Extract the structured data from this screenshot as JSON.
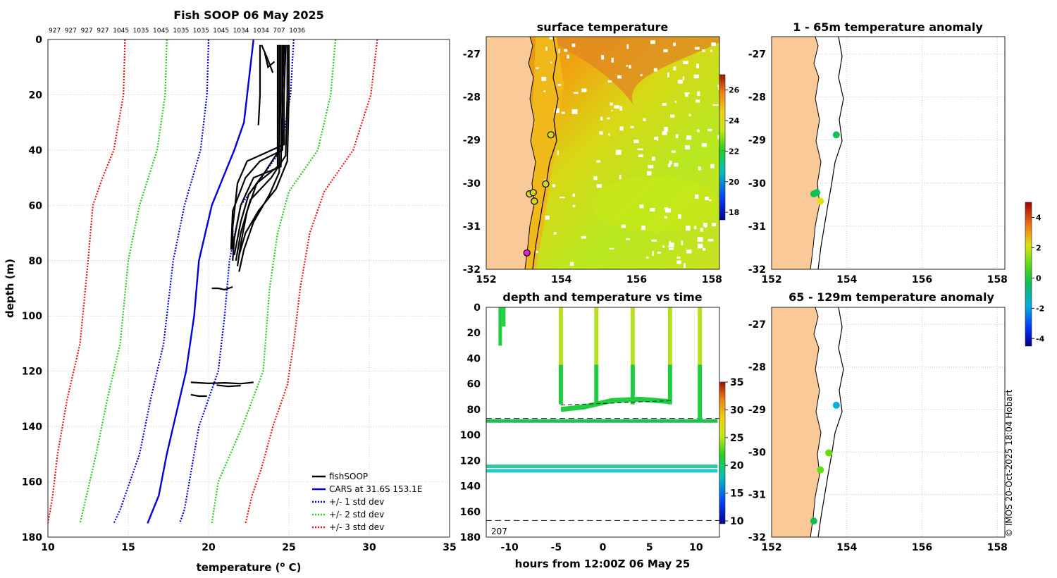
{
  "colors": {
    "land": "#f9c998",
    "cars": "#0000dd",
    "std1": "#0000dd",
    "std2": "#22cc22",
    "std3": "#ee1111",
    "profile": "#000000",
    "sst_warm": "#f0b010",
    "sst_cool": "#c8e820"
  },
  "profile_plot": {
    "title": "Fish SOOP 06 May 2025",
    "counts": [
      "927",
      "927",
      "927",
      "927",
      "1045",
      "1035",
      "1045",
      "1035",
      "1035",
      "1045",
      "1034",
      "1034",
      "707",
      "1036"
    ],
    "xlabel": "temperature (o C)",
    "xlabel_main": "temperature (",
    "xlabel_sup": "o",
    "xlabel_end": " C)",
    "ylabel": "depth (m)",
    "xticks": [
      "10",
      "15",
      "20",
      "25",
      "30",
      "35"
    ],
    "yticks": [
      "0",
      "20",
      "40",
      "60",
      "80",
      "100",
      "120",
      "140",
      "160",
      "180"
    ],
    "legend": [
      "fishSOOP",
      "CARS at 31.6S 153.1E",
      "+/- 1 std dev",
      "+/- 2 std dev",
      "+/- 3 std dev"
    ]
  },
  "chart_data": [
    {
      "type": "line",
      "title": "Fish SOOP 06 May 2025",
      "xlabel": "temperature (o C)",
      "ylabel": "depth (m)",
      "xlim": [
        10,
        35
      ],
      "ylim": [
        180,
        0
      ],
      "series": [
        {
          "name": "CARS at 31.6S 153.1E",
          "points": [
            [
              22.8,
              0
            ],
            [
              22.5,
              15
            ],
            [
              22.2,
              30
            ],
            [
              21.6,
              40
            ],
            [
              20.9,
              50
            ],
            [
              20.2,
              60
            ],
            [
              19.8,
              70
            ],
            [
              19.4,
              80
            ],
            [
              19.1,
              100
            ],
            [
              18.6,
              120
            ],
            [
              17.8,
              140
            ],
            [
              17.4,
              150
            ],
            [
              16.9,
              165
            ],
            [
              16.2,
              175
            ]
          ]
        },
        {
          "name": "+/- 1 std dev (low)",
          "points": [
            [
              20.0,
              0
            ],
            [
              19.9,
              20
            ],
            [
              19.5,
              40
            ],
            [
              18.5,
              60
            ],
            [
              17.8,
              80
            ],
            [
              17.2,
              110
            ],
            [
              16.4,
              130
            ],
            [
              15.7,
              150
            ],
            [
              14.5,
              170
            ],
            [
              14.1,
              175
            ]
          ]
        },
        {
          "name": "+/- 1 std dev (high)",
          "points": [
            [
              25.3,
              0
            ],
            [
              25.1,
              20
            ],
            [
              24.5,
              40
            ],
            [
              23.3,
              50
            ],
            [
              22.0,
              60
            ],
            [
              21.3,
              80
            ],
            [
              21.0,
              100
            ],
            [
              20.6,
              120
            ],
            [
              19.4,
              140
            ],
            [
              18.5,
              170
            ],
            [
              18.2,
              175
            ]
          ]
        },
        {
          "name": "+/- 2 std dev (low)",
          "points": [
            [
              17.4,
              0
            ],
            [
              17.3,
              20
            ],
            [
              16.8,
              40
            ],
            [
              15.7,
              60
            ],
            [
              15.0,
              80
            ],
            [
              14.5,
              110
            ],
            [
              13.7,
              130
            ],
            [
              13.0,
              150
            ],
            [
              12.2,
              170
            ],
            [
              12.0,
              175
            ]
          ]
        },
        {
          "name": "+/- 2 std dev (high)",
          "points": [
            [
              27.9,
              0
            ],
            [
              27.6,
              20
            ],
            [
              26.8,
              40
            ],
            [
              25.0,
              55
            ],
            [
              24.3,
              70
            ],
            [
              23.8,
              90
            ],
            [
              23.4,
              120
            ],
            [
              22.1,
              140
            ],
            [
              20.6,
              160
            ],
            [
              20.2,
              175
            ]
          ]
        },
        {
          "name": "+/- 3 std dev (low)",
          "points": [
            [
              14.8,
              0
            ],
            [
              14.7,
              20
            ],
            [
              14.1,
              40
            ],
            [
              13.4,
              50
            ],
            [
              12.8,
              60
            ],
            [
              12.5,
              80
            ],
            [
              12.0,
              110
            ],
            [
              11.2,
              130
            ],
            [
              10.6,
              150
            ],
            [
              10.3,
              165
            ],
            [
              10.0,
              175
            ]
          ]
        },
        {
          "name": "+/- 3 std dev (high)",
          "points": [
            [
              30.5,
              0
            ],
            [
              30.1,
              20
            ],
            [
              29.0,
              40
            ],
            [
              27.2,
              55
            ],
            [
              26.3,
              70
            ],
            [
              25.7,
              90
            ],
            [
              25.3,
              110
            ],
            [
              24.9,
              125
            ],
            [
              24.0,
              140
            ],
            [
              23.3,
              155
            ],
            [
              22.7,
              165
            ],
            [
              22.3,
              175
            ]
          ]
        },
        {
          "name": "fishSOOP",
          "profiles": [
            [
              [
                23.2,
                2
              ],
              [
                23.2,
                20
              ],
              [
                23.1,
                31
              ]
            ],
            [
              [
                23.3,
                2
              ],
              [
                23.6,
                6
              ],
              [
                24.0,
                12
              ]
            ],
            [
              [
                23.5,
                5
              ],
              [
                23.7,
                10
              ],
              [
                24.1,
                8
              ]
            ],
            [
              [
                24.7,
                2
              ],
              [
                24.6,
                20
              ],
              [
                24.6,
                40
              ],
              [
                23.2,
                44
              ],
              [
                22.3,
                50
              ],
              [
                21.5,
                62
              ],
              [
                21.4,
                76
              ]
            ],
            [
              [
                24.5,
                2
              ],
              [
                24.5,
                20
              ],
              [
                24.4,
                40
              ],
              [
                23.5,
                48
              ],
              [
                22.5,
                56
              ],
              [
                22.0,
                66
              ],
              [
                21.6,
                78
              ]
            ],
            [
              [
                24.8,
                2
              ],
              [
                24.7,
                20
              ],
              [
                24.7,
                38
              ],
              [
                22.4,
                44
              ],
              [
                21.8,
                52
              ],
              [
                21.5,
                68
              ],
              [
                21.5,
                76
              ]
            ],
            [
              [
                24.9,
                2
              ],
              [
                24.9,
                20
              ],
              [
                24.8,
                42
              ],
              [
                23.9,
                50
              ],
              [
                22.6,
                58
              ],
              [
                22.0,
                70
              ],
              [
                21.7,
                80
              ]
            ],
            [
              [
                25.0,
                2
              ],
              [
                25.0,
                20
              ],
              [
                24.9,
                44
              ],
              [
                24.2,
                54
              ],
              [
                23.1,
                62
              ],
              [
                22.3,
                70
              ],
              [
                21.9,
                78
              ]
            ],
            [
              [
                24.6,
                2
              ],
              [
                24.6,
                20
              ],
              [
                24.5,
                46
              ],
              [
                22.8,
                50
              ],
              [
                22.0,
                60
              ],
              [
                21.6,
                72
              ],
              [
                21.5,
                80
              ]
            ],
            [
              [
                24.3,
                2
              ],
              [
                24.3,
                20
              ],
              [
                24.3,
                46
              ],
              [
                23.0,
                52
              ],
              [
                22.4,
                62
              ],
              [
                22.0,
                74
              ],
              [
                21.8,
                82
              ]
            ],
            [
              [
                24.4,
                2
              ],
              [
                24.4,
                20
              ],
              [
                24.4,
                48
              ],
              [
                23.8,
                56
              ],
              [
                22.8,
                66
              ],
              [
                22.2,
                76
              ],
              [
                21.9,
                84
              ]
            ],
            [
              [
                20.2,
                90
              ],
              [
                20.6,
                90
              ],
              [
                21.0,
                90.5
              ],
              [
                21.5,
                89.5
              ]
            ],
            [
              [
                18.9,
                124
              ],
              [
                20.0,
                124.4
              ],
              [
                21.0,
                124.2
              ],
              [
                22.0,
                124.5
              ],
              [
                22.8,
                124.0
              ]
            ],
            [
              [
                20.5,
                125
              ],
              [
                21.2,
                125.5
              ],
              [
                22.0,
                125.2
              ]
            ],
            [
              [
                18.9,
                128.5
              ],
              [
                19.4,
                129
              ],
              [
                19.9,
                129
              ]
            ]
          ]
        }
      ]
    },
    {
      "type": "heatmap",
      "title": "surface temperature",
      "xlim": [
        152,
        158.2
      ],
      "ylim": [
        -32,
        -26.6
      ],
      "xticks": [
        "152",
        "154",
        "156",
        "158"
      ],
      "yticks": [
        "-27",
        "-28",
        "-29",
        "-30",
        "-31",
        "-32"
      ],
      "colorbar": {
        "range": [
          17.5,
          27
        ],
        "ticks": [
          "26",
          "24",
          "22",
          "20",
          "18"
        ]
      },
      "stations": [
        {
          "lon": 153.72,
          "lat": -28.88
        },
        {
          "lon": 153.58,
          "lat": -30.02
        },
        {
          "lon": 153.15,
          "lat": -30.25
        },
        {
          "lon": 153.25,
          "lat": -30.22
        },
        {
          "lon": 153.28,
          "lat": -30.42
        },
        {
          "lon": 153.08,
          "lat": -31.62
        }
      ]
    },
    {
      "type": "scatter",
      "title": "depth and temperature vs time",
      "xlabel": "hours from 12:00Z 06 May 25",
      "xlim": [
        -12.5,
        12.5
      ],
      "ylim": [
        180,
        0
      ],
      "xticks": [
        "-10",
        "-5",
        "0",
        "5",
        "10"
      ],
      "yticks": [
        "0",
        "20",
        "40",
        "60",
        "80",
        "100",
        "120",
        "140",
        "160",
        "180"
      ],
      "colorbar": {
        "range": [
          9.5,
          35
        ],
        "ticks": [
          "35",
          "30",
          "25",
          "20",
          "15",
          "10"
        ]
      },
      "bottom_label": "207",
      "dashed_depths": [
        87,
        167
      ],
      "casts_hours": [
        -11.0,
        -4.5,
        -0.7,
        3.2,
        7.2,
        10.4
      ],
      "bottom_lines": [
        {
          "depth": 89,
          "temp": 21
        },
        {
          "depth": 124.5,
          "temp": 20
        },
        {
          "depth": 128,
          "temp": 18.5
        }
      ]
    },
    {
      "type": "scatter",
      "title": "1 - 65m temperature anomaly",
      "xlim": [
        152,
        158.2
      ],
      "ylim": [
        -32,
        -26.6
      ],
      "xticks": [
        "152",
        "154",
        "156",
        "158"
      ],
      "yticks": [
        "-27",
        "-28",
        "-29",
        "-30",
        "-31",
        "-32"
      ],
      "points": [
        {
          "lon": 153.72,
          "lat": -28.88,
          "anomaly": 0.0
        },
        {
          "lon": 153.2,
          "lat": -30.22,
          "anomaly": -0.4
        },
        {
          "lon": 153.12,
          "lat": -30.25,
          "anomaly": -0.6
        },
        {
          "lon": 153.3,
          "lat": -30.42,
          "anomaly": 1.8
        }
      ]
    },
    {
      "type": "scatter",
      "title": "65 - 129m temperature anomaly",
      "xlim": [
        152,
        158.2
      ],
      "ylim": [
        -32,
        -26.6
      ],
      "xticks": [
        "152",
        "154",
        "156",
        "158"
      ],
      "yticks": [
        "-27",
        "-28",
        "-29",
        "-30",
        "-31",
        "-32"
      ],
      "colorbar": {
        "range": [
          -4.5,
          5
        ],
        "ticks": [
          "4",
          "2",
          "0",
          "-2",
          "-4"
        ]
      },
      "points": [
        {
          "lon": 153.72,
          "lat": -28.9,
          "anomaly": -1.0
        },
        {
          "lon": 153.52,
          "lat": -30.02,
          "anomaly": 0.6
        },
        {
          "lon": 153.3,
          "lat": -30.42,
          "anomaly": 1.6
        },
        {
          "lon": 153.12,
          "lat": -31.62,
          "anomaly": 0.2
        }
      ]
    }
  ],
  "footer": {
    "credit": "© IMOS 20-Oct-2025 18:04 Hobart"
  }
}
